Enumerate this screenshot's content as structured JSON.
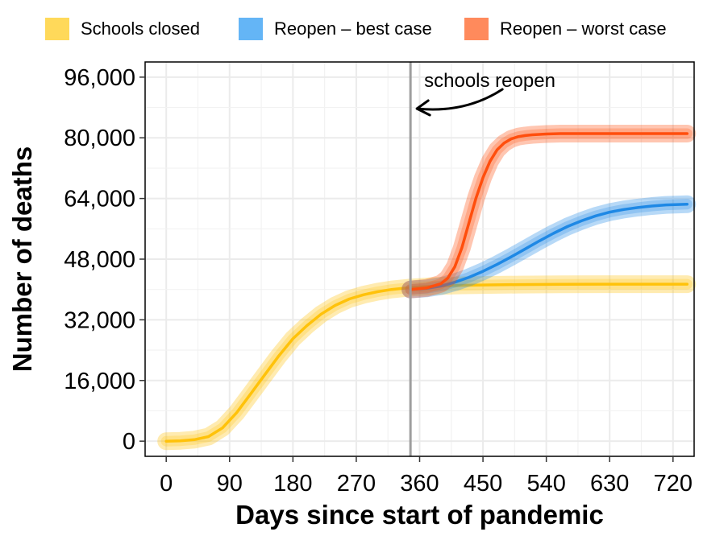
{
  "chart_data": {
    "type": "line",
    "title": "",
    "xlabel": "Days since start of pandemic",
    "ylabel": "Number of deaths",
    "xlim": [
      -30,
      750
    ],
    "ylim": [
      -4000,
      100000
    ],
    "xticks": [
      0,
      90,
      180,
      270,
      360,
      450,
      540,
      630,
      720
    ],
    "xtick_labels": [
      "0",
      "90",
      "180",
      "270",
      "360",
      "450",
      "540",
      "630",
      "720"
    ],
    "yticks": [
      0,
      16000,
      32000,
      48000,
      64000,
      80000,
      96000
    ],
    "ytick_labels": [
      "0",
      "16,000",
      "32,000",
      "48,000",
      "64,000",
      "80,000",
      "96,000"
    ],
    "grid": true,
    "legend_position": "top",
    "reopen_day": 347,
    "annotation": "schools reopen",
    "series": [
      {
        "name": "Schools closed",
        "color": "#FFC20A",
        "legend_color": "#FFD95A",
        "x": [
          0,
          20,
          40,
          60,
          80,
          100,
          120,
          140,
          160,
          180,
          200,
          220,
          240,
          260,
          280,
          300,
          320,
          347,
          380,
          420,
          460,
          500,
          560,
          620,
          680,
          740
        ],
        "y": [
          0,
          100,
          400,
          1200,
          3500,
          7500,
          12500,
          17500,
          22500,
          27000,
          30500,
          33500,
          35800,
          37500,
          38600,
          39400,
          40000,
          40500,
          40900,
          41100,
          41200,
          41300,
          41350,
          41400,
          41400,
          41400
        ]
      },
      {
        "name": "Reopen – best case",
        "color": "#1E88E5",
        "legend_color": "#64B5F6",
        "x": [
          347,
          370,
          390,
          410,
          430,
          450,
          470,
          490,
          510,
          530,
          550,
          570,
          590,
          610,
          630,
          650,
          670,
          690,
          710,
          740
        ],
        "y": [
          40000,
          40300,
          40900,
          41900,
          43200,
          44800,
          46600,
          48600,
          50700,
          52800,
          54800,
          56600,
          58100,
          59400,
          60400,
          61100,
          61600,
          62000,
          62300,
          62500
        ]
      },
      {
        "name": "Reopen – worst case",
        "color": "#FF4E0D",
        "legend_color": "#FF8A5C",
        "x": [
          347,
          370,
          390,
          400,
          410,
          420,
          430,
          440,
          450,
          460,
          470,
          480,
          490,
          500,
          510,
          520,
          540,
          560,
          600,
          650,
          700,
          740
        ],
        "y": [
          40000,
          40400,
          41500,
          43000,
          46000,
          51000,
          57500,
          64000,
          69500,
          73800,
          76800,
          78600,
          79700,
          80300,
          80600,
          80800,
          81000,
          81100,
          81100,
          81100,
          81100,
          81100
        ]
      }
    ]
  }
}
